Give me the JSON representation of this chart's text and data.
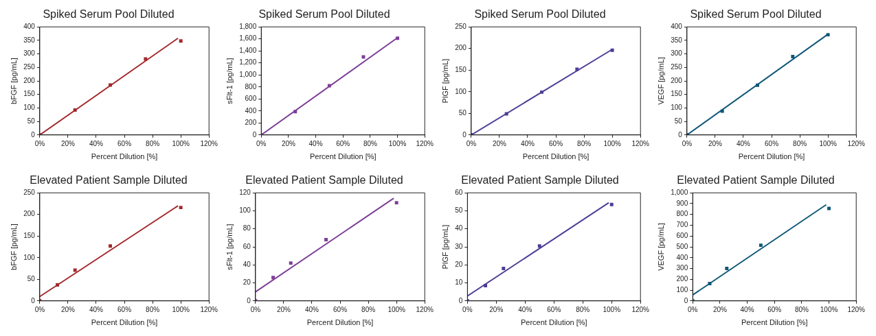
{
  "chart_data": [
    {
      "type": "scatter",
      "title": "Spiked Serum Pool Diluted",
      "xlabel": "Percent Dilution [%]",
      "ylabel": "bFGF [pg/mL]",
      "xlim": [
        0,
        120
      ],
      "xticks": [
        {
          "value": 0,
          "label": "0%"
        },
        {
          "value": 20,
          "label": "20%"
        },
        {
          "value": 40,
          "label": "40%"
        },
        {
          "value": 60,
          "label": "60%"
        },
        {
          "value": 80,
          "label": "80%"
        },
        {
          "value": 100,
          "label": "100%"
        },
        {
          "value": 120,
          "label": "120%"
        }
      ],
      "ylim": [
        0,
        400
      ],
      "yticks": [
        0,
        50,
        100,
        150,
        200,
        250,
        300,
        350,
        400
      ],
      "grid": false,
      "series": [
        {
          "type": "scatter",
          "color": "#a3282d",
          "marker": "square",
          "x": [
            0,
            25,
            50,
            75,
            100
          ],
          "values": [
            0,
            92,
            185,
            281,
            348
          ]
        },
        {
          "type": "line",
          "color": "#a3282d",
          "marker": "none",
          "x": [
            0,
            98
          ],
          "values": [
            0,
            358
          ]
        }
      ]
    },
    {
      "type": "scatter",
      "title": "Spiked Serum Pool Diluted",
      "xlabel": "Percent Dilution [%]",
      "ylabel": "sFlt-1 [pg/mL]",
      "xlim": [
        0,
        120
      ],
      "xticks": [
        {
          "value": 0,
          "label": "0%"
        },
        {
          "value": 20,
          "label": "20%"
        },
        {
          "value": 40,
          "label": "40%"
        },
        {
          "value": 60,
          "label": "60%"
        },
        {
          "value": 80,
          "label": "80%"
        },
        {
          "value": 100,
          "label": "100%"
        },
        {
          "value": 120,
          "label": "120%"
        }
      ],
      "ylim": [
        0,
        1800
      ],
      "yticks": [
        0,
        200,
        400,
        600,
        800,
        {
          "value": 1000,
          "label": "1,000"
        },
        {
          "value": 1200,
          "label": "1,200"
        },
        {
          "value": 1400,
          "label": "1,400"
        },
        {
          "value": 1600,
          "label": "1,600"
        },
        {
          "value": 1800,
          "label": "1,800"
        }
      ],
      "grid": false,
      "series": [
        {
          "type": "scatter",
          "color": "#7d3f98",
          "marker": "square",
          "x": [
            0,
            25,
            50,
            75,
            100
          ],
          "values": [
            0,
            390,
            820,
            1300,
            1610
          ]
        },
        {
          "type": "line",
          "color": "#7d3f98",
          "marker": "none",
          "x": [
            0,
            100
          ],
          "values": [
            0,
            1620
          ]
        }
      ]
    },
    {
      "type": "scatter",
      "title": "Spiked Serum Pool Diluted",
      "xlabel": "Percent Dilution [%]",
      "ylabel": "PlGF [pg/mL]",
      "xlim": [
        0,
        120
      ],
      "xticks": [
        {
          "value": 0,
          "label": "0%"
        },
        {
          "value": 20,
          "label": "20%"
        },
        {
          "value": 40,
          "label": "40%"
        },
        {
          "value": 60,
          "label": "60%"
        },
        {
          "value": 80,
          "label": "80%"
        },
        {
          "value": 100,
          "label": "100%"
        },
        {
          "value": 120,
          "label": "120%"
        }
      ],
      "ylim": [
        0,
        250
      ],
      "yticks": [
        0,
        50,
        100,
        150,
        200,
        250
      ],
      "grid": false,
      "series": [
        {
          "type": "scatter",
          "color": "#4f3d96",
          "marker": "square",
          "x": [
            0,
            25,
            50,
            75,
            100
          ],
          "values": [
            0,
            49,
            99,
            152,
            196
          ]
        },
        {
          "type": "line",
          "color": "#4f3d96",
          "marker": "none",
          "x": [
            0,
            100
          ],
          "values": [
            0,
            198
          ]
        }
      ]
    },
    {
      "type": "scatter",
      "title": "Spiked Serum Pool Diluted",
      "xlabel": "Percent Dilution [%]",
      "ylabel": "VEGF [pg/mL]",
      "xlim": [
        0,
        120
      ],
      "xticks": [
        {
          "value": 0,
          "label": "0%"
        },
        {
          "value": 20,
          "label": "20%"
        },
        {
          "value": 40,
          "label": "40%"
        },
        {
          "value": 60,
          "label": "60%"
        },
        {
          "value": 80,
          "label": "80%"
        },
        {
          "value": 100,
          "label": "100%"
        },
        {
          "value": 120,
          "label": "120%"
        }
      ],
      "ylim": [
        0,
        400
      ],
      "yticks": [
        0,
        50,
        100,
        150,
        200,
        250,
        300,
        350,
        400
      ],
      "grid": false,
      "series": [
        {
          "type": "scatter",
          "color": "#0f5878",
          "marker": "square",
          "x": [
            0,
            25,
            50,
            75,
            100
          ],
          "values": [
            0,
            88,
            184,
            290,
            371
          ]
        },
        {
          "type": "line",
          "color": "#0f5878",
          "marker": "none",
          "x": [
            0,
            100
          ],
          "values": [
            0,
            373
          ]
        }
      ]
    },
    {
      "type": "scatter",
      "title": "Elevated Patient Sample Diluted",
      "xlabel": "Percent Dilution [%]",
      "ylabel": "bFGF [pg/mL]",
      "xlim": [
        0,
        120
      ],
      "xticks": [
        {
          "value": 0,
          "label": "0%"
        },
        {
          "value": 20,
          "label": "20%"
        },
        {
          "value": 40,
          "label": "40%"
        },
        {
          "value": 60,
          "label": "60%"
        },
        {
          "value": 80,
          "label": "80%"
        },
        {
          "value": 100,
          "label": "100%"
        },
        {
          "value": 120,
          "label": "120%"
        }
      ],
      "ylim": [
        0,
        250
      ],
      "yticks": [
        0,
        50,
        100,
        150,
        200,
        250
      ],
      "grid": false,
      "series": [
        {
          "type": "scatter",
          "color": "#a3282d",
          "marker": "square",
          "x": [
            0,
            12.5,
            25,
            50,
            100
          ],
          "values": [
            0,
            37,
            71,
            127,
            216
          ]
        },
        {
          "type": "line",
          "color": "#a3282d",
          "marker": "none",
          "x": [
            0,
            98
          ],
          "values": [
            10,
            220
          ]
        }
      ]
    },
    {
      "type": "scatter",
      "title": "Elevated Patient Sample Diluted",
      "xlabel": "Percent Dilution [%]",
      "ylabel": "sFlt-1 [pg/mL]",
      "xlim": [
        0,
        120
      ],
      "xticks": [
        {
          "value": 0,
          "label": "0%"
        },
        {
          "value": 20,
          "label": "20%"
        },
        {
          "value": 40,
          "label": "40%"
        },
        {
          "value": 60,
          "label": "60%"
        },
        {
          "value": 80,
          "label": "80%"
        },
        {
          "value": 100,
          "label": "100%"
        },
        {
          "value": 120,
          "label": "120%"
        }
      ],
      "ylim": [
        0,
        120
      ],
      "yticks": [
        0,
        20,
        40,
        60,
        80,
        100,
        120
      ],
      "grid": false,
      "series": [
        {
          "type": "scatter",
          "color": "#7d3f98",
          "marker": "square",
          "x": [
            0,
            12.5,
            25,
            50,
            100
          ],
          "values": [
            0,
            26,
            42,
            68,
            109
          ]
        },
        {
          "type": "line",
          "color": "#7d3f98",
          "marker": "none",
          "x": [
            0,
            98
          ],
          "values": [
            10,
            114
          ]
        }
      ]
    },
    {
      "type": "scatter",
      "title": "Elevated Patient Sample Diluted",
      "xlabel": "Percent Dilution [%]",
      "ylabel": "PlGF [pg/mL]",
      "xlim": [
        0,
        120
      ],
      "xticks": [
        {
          "value": 0,
          "label": "0%"
        },
        {
          "value": 20,
          "label": "20%"
        },
        {
          "value": 40,
          "label": "40%"
        },
        {
          "value": 60,
          "label": "60%"
        },
        {
          "value": 80,
          "label": "80%"
        },
        {
          "value": 100,
          "label": "100%"
        },
        {
          "value": 120,
          "label": "120%"
        }
      ],
      "ylim": [
        0,
        60
      ],
      "yticks": [
        0,
        10,
        20,
        30,
        40,
        50,
        60
      ],
      "grid": false,
      "series": [
        {
          "type": "scatter",
          "color": "#4f3d96",
          "marker": "square",
          "x": [
            0,
            12.5,
            25,
            50,
            100
          ],
          "values": [
            0,
            8.5,
            18,
            30.5,
            53.5
          ]
        },
        {
          "type": "line",
          "color": "#4f3d96",
          "marker": "none",
          "x": [
            0,
            98
          ],
          "values": [
            2.7,
            54.5
          ]
        }
      ]
    },
    {
      "type": "scatter",
      "title": "Elevated Patient Sample Diluted",
      "xlabel": "Percent Dilution [%]",
      "ylabel": "VEGF [pg/mL]",
      "xlim": [
        0,
        120
      ],
      "xticks": [
        {
          "value": 0,
          "label": "0%"
        },
        {
          "value": 20,
          "label": "20%"
        },
        {
          "value": 40,
          "label": "40%"
        },
        {
          "value": 60,
          "label": "60%"
        },
        {
          "value": 80,
          "label": "80%"
        },
        {
          "value": 100,
          "label": "100%"
        },
        {
          "value": 120,
          "label": "120%"
        }
      ],
      "ylim": [
        0,
        1000
      ],
      "yticks": [
        0,
        100,
        200,
        300,
        400,
        500,
        600,
        700,
        800,
        900,
        {
          "value": 1000,
          "label": "1,000"
        }
      ],
      "grid": false,
      "series": [
        {
          "type": "scatter",
          "color": "#0f5878",
          "marker": "square",
          "x": [
            0,
            12.5,
            25,
            50,
            100
          ],
          "values": [
            0,
            160,
            300,
            515,
            855
          ]
        },
        {
          "type": "line",
          "color": "#0f5878",
          "marker": "none",
          "x": [
            0,
            98
          ],
          "values": [
            55,
            890
          ]
        }
      ]
    }
  ]
}
